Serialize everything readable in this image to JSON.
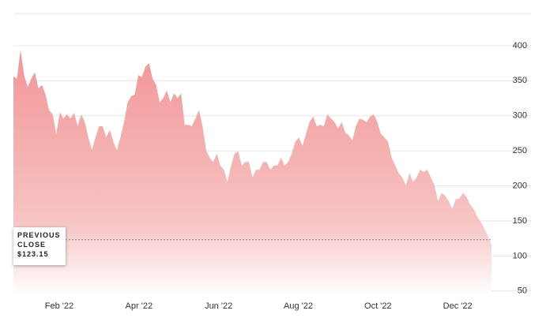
{
  "chart_data": {
    "type": "area",
    "series": [
      {
        "color": "#f29595",
        "values": [
          356,
          353,
          394,
          358,
          341,
          353,
          362,
          339,
          344,
          330,
          308,
          302,
          274,
          305,
          296,
          302,
          296,
          304,
          285,
          302,
          291,
          269,
          251,
          269,
          285,
          285,
          269,
          280,
          263,
          251,
          269,
          291,
          319,
          328,
          330,
          358,
          355,
          370,
          375,
          353,
          344,
          319,
          325,
          336,
          319,
          332,
          325,
          332,
          287,
          287,
          285,
          296,
          308,
          285,
          251,
          240,
          234,
          246,
          229,
          223,
          206,
          229,
          246,
          249,
          229,
          234,
          234,
          212,
          223,
          223,
          234,
          234,
          223,
          229,
          229,
          240,
          229,
          234,
          246,
          263,
          269,
          257,
          274,
          291,
          299,
          285,
          287,
          285,
          302,
          296,
          291,
          282,
          291,
          276,
          272,
          265,
          285,
          296,
          294,
          291,
          299,
          302,
          291,
          274,
          269,
          263,
          240,
          229,
          218,
          212,
          201,
          218,
          206,
          212,
          223,
          220,
          223,
          212,
          201,
          178,
          190,
          186,
          178,
          167,
          181,
          182,
          190,
          184,
          173,
          167,
          156,
          148,
          139,
          128,
          116
        ]
      }
    ],
    "xlim": [
      -0.15,
      11.85
    ],
    "xticks": [
      {
        "value": 1,
        "label": "Feb '22"
      },
      {
        "value": 3,
        "label": "Apr '22"
      },
      {
        "value": 5,
        "label": "Jun '22"
      },
      {
        "value": 7,
        "label": "Aug '22"
      },
      {
        "value": 9,
        "label": "Oct '22"
      },
      {
        "value": 11,
        "label": "Dec '22"
      }
    ],
    "ylim": [
      43,
      446
    ],
    "yticks": [
      50,
      100,
      150,
      200,
      250,
      300,
      350,
      400
    ],
    "grid": true,
    "annotation": {
      "text": "PREVIOUS CLOSE",
      "value": 123.15,
      "label": "$123.15"
    }
  }
}
